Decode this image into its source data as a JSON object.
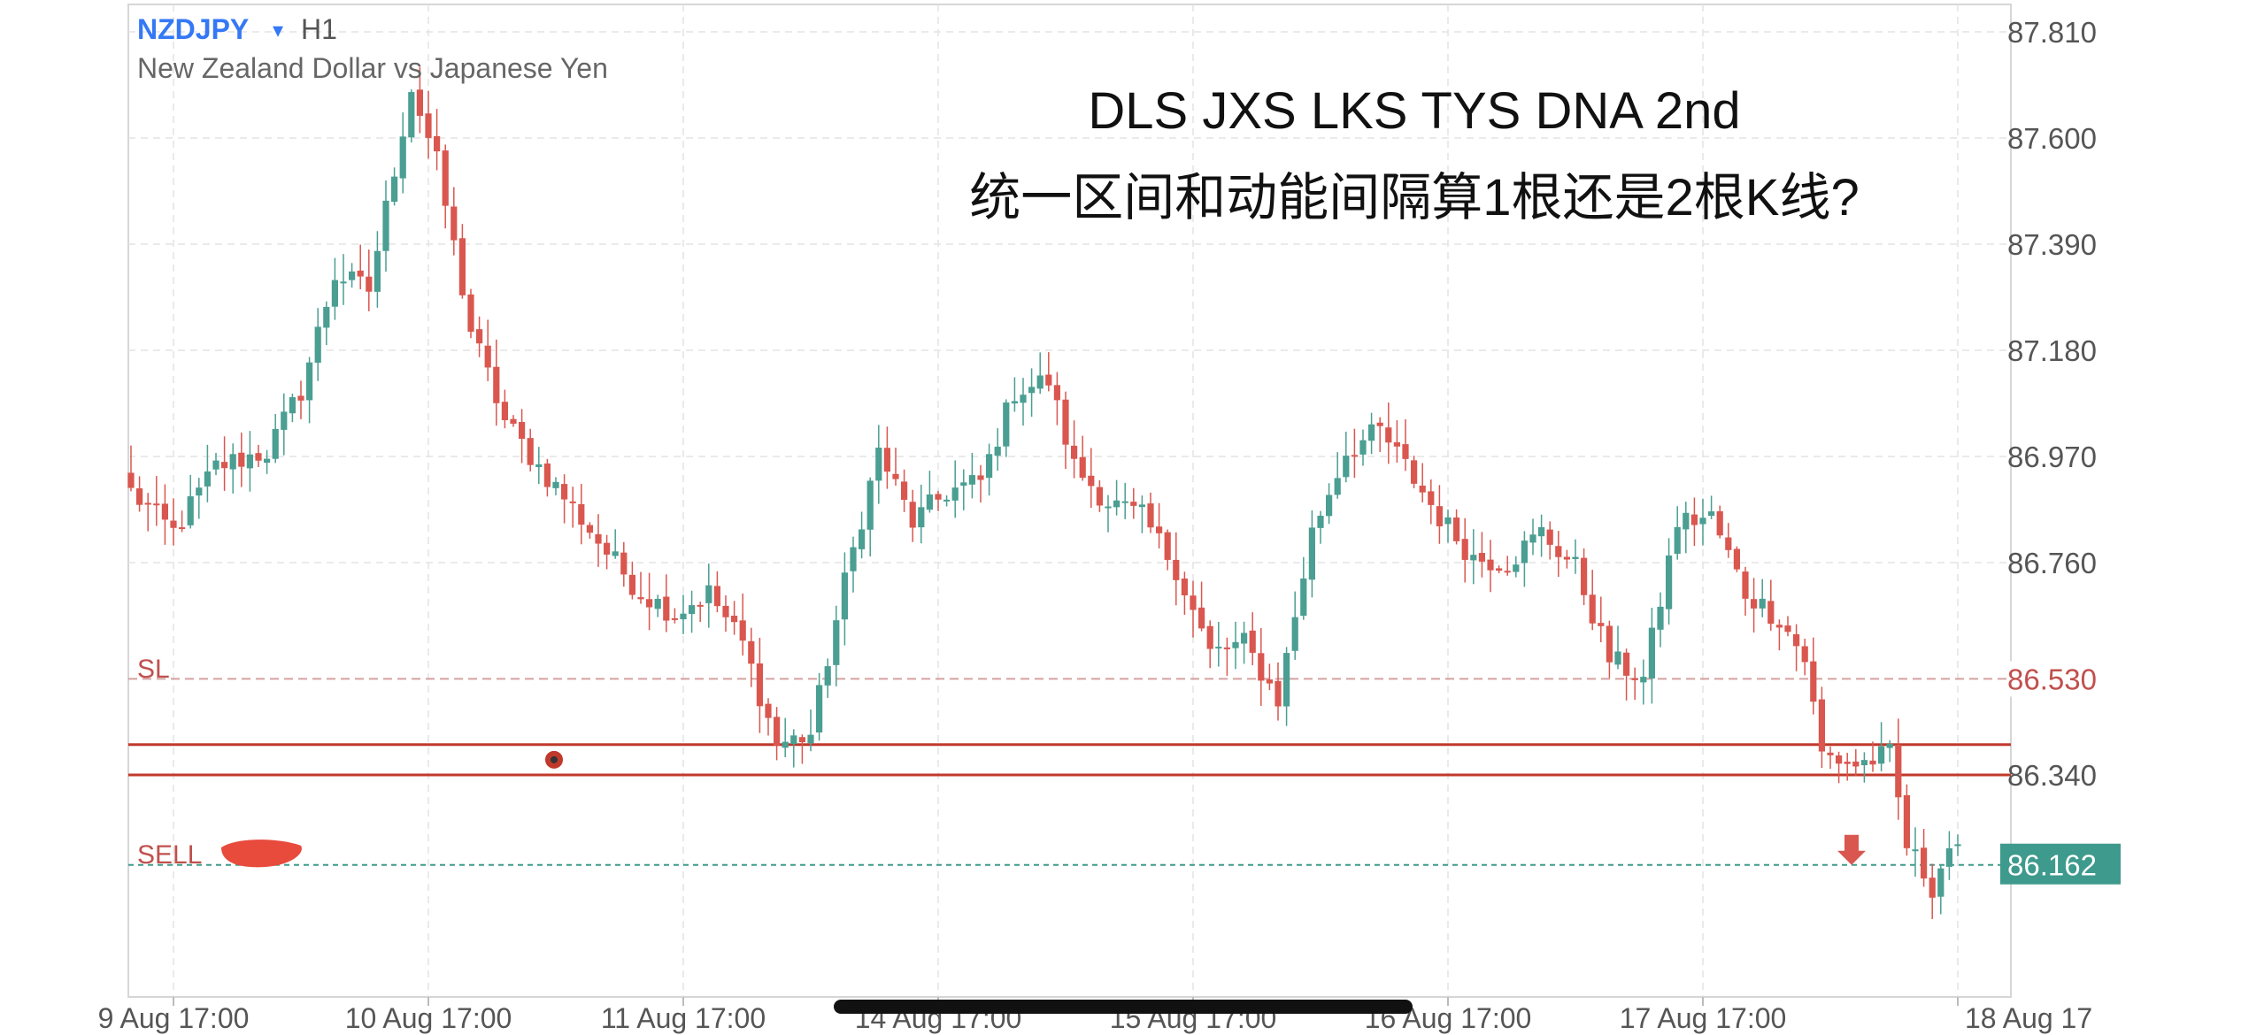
{
  "header": {
    "symbol": "NZDJPY",
    "dropdown_glyph": "▾",
    "timeframe": "H1",
    "description": "New Zealand Dollar vs Japanese Yen"
  },
  "annotation": {
    "line1": "DLS JXS LKS TYS DNA 2nd",
    "line2": "统一区间和动能间隔算1根还是2根K线?"
  },
  "levels": {
    "sl": {
      "label": "SL",
      "price": 86.53,
      "price_label": "86.530",
      "color": "#c0504d"
    },
    "sell": {
      "label": "SELL",
      "price": 86.162,
      "price_label": "86.162",
      "color": "#3e9a8c"
    },
    "zone_top": 86.4,
    "zone_bottom": 86.34,
    "zone_color": "#c0392b"
  },
  "colors": {
    "up": "#4a9e92",
    "down": "#d9574f",
    "grid": "#e4e4e4",
    "axis_text": "#555555",
    "ticker": "#3478f6"
  },
  "chart_data": {
    "type": "candlestick",
    "instrument": "NZDJPY",
    "timeframe": "H1",
    "y_ticks": [
      87.81,
      87.6,
      87.39,
      87.18,
      86.97,
      86.76,
      86.34
    ],
    "y_tick_labels": [
      "87.810",
      "87.600",
      "87.390",
      "87.180",
      "86.970",
      "86.760",
      "86.340"
    ],
    "ylim": [
      85.95,
      87.87
    ],
    "x_tick_labels": [
      "9 Aug 17:00",
      "10 Aug 17:00",
      "11 Aug 17:00",
      "14 Aug 17:00",
      "15 Aug 17:00",
      "16 Aug 17:00",
      "17 Aug 17:00",
      "18 Aug 17"
    ],
    "x_tick_bar_index": [
      5,
      35,
      65,
      95,
      125,
      155,
      185,
      215
    ],
    "bar_count": 216,
    "anchors": [
      [
        0,
        86.9
      ],
      [
        5,
        86.82
      ],
      [
        10,
        86.95
      ],
      [
        16,
        86.98
      ],
      [
        20,
        87.1
      ],
      [
        24,
        87.33
      ],
      [
        28,
        87.3
      ],
      [
        33,
        87.7
      ],
      [
        36,
        87.55
      ],
      [
        40,
        87.22
      ],
      [
        44,
        87.04
      ],
      [
        48,
        86.95
      ],
      [
        52,
        86.87
      ],
      [
        56,
        86.78
      ],
      [
        60,
        86.7
      ],
      [
        64,
        86.66
      ],
      [
        68,
        86.7
      ],
      [
        72,
        86.6
      ],
      [
        76,
        86.4
      ],
      [
        80,
        86.42
      ],
      [
        84,
        86.72
      ],
      [
        88,
        86.98
      ],
      [
        92,
        86.84
      ],
      [
        96,
        86.9
      ],
      [
        100,
        86.92
      ],
      [
        104,
        87.1
      ],
      [
        108,
        87.12
      ],
      [
        111,
        86.95
      ],
      [
        115,
        86.88
      ],
      [
        119,
        86.85
      ],
      [
        123,
        86.75
      ],
      [
        127,
        86.58
      ],
      [
        131,
        86.6
      ],
      [
        135,
        86.49
      ],
      [
        139,
        86.82
      ],
      [
        143,
        86.98
      ],
      [
        147,
        87.02
      ],
      [
        150,
        86.95
      ],
      [
        154,
        86.85
      ],
      [
        158,
        86.77
      ],
      [
        162,
        86.76
      ],
      [
        166,
        86.82
      ],
      [
        170,
        86.75
      ],
      [
        174,
        86.57
      ],
      [
        178,
        86.53
      ],
      [
        182,
        86.84
      ],
      [
        186,
        86.85
      ],
      [
        190,
        86.7
      ],
      [
        194,
        86.65
      ],
      [
        197,
        86.57
      ],
      [
        199,
        86.38
      ],
      [
        203,
        86.36
      ],
      [
        207,
        86.38
      ],
      [
        209,
        86.2
      ],
      [
        212,
        86.12
      ],
      [
        214,
        86.2
      ],
      [
        216,
        86.162
      ]
    ],
    "price_ticks": [
      86.34
    ],
    "last_price": 86.162
  }
}
